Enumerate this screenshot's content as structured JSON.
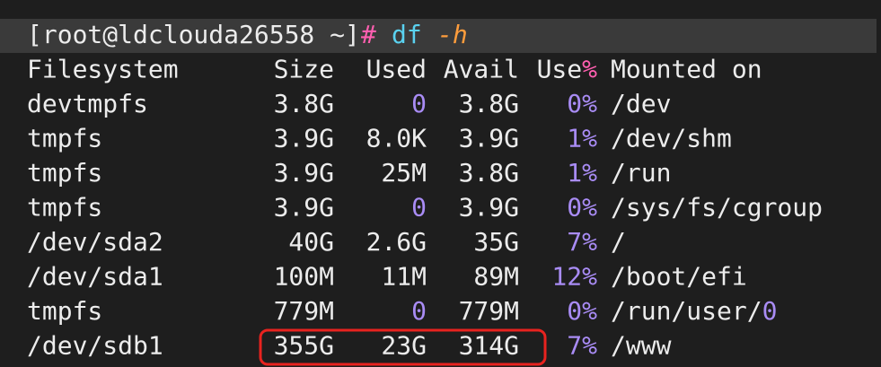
{
  "prompt": {
    "user_host": "[root@ldclouda26558 ~]",
    "symbol": "#",
    "command": "df",
    "flag": "-h"
  },
  "header": [
    "Filesystem",
    "Size",
    "Used",
    "Avail",
    "Use%",
    "Mounted on"
  ],
  "rows": [
    [
      "devtmpfs",
      "3.8G",
      "0",
      "3.8G",
      "0%",
      "/dev"
    ],
    [
      "tmpfs",
      "3.9G",
      "8.0K",
      "3.9G",
      "1%",
      "/dev/shm"
    ],
    [
      "tmpfs",
      "3.9G",
      "25M",
      "3.8G",
      "1%",
      "/run"
    ],
    [
      "tmpfs",
      "3.9G",
      "0",
      "3.9G",
      "0%",
      "/sys/fs/cgroup"
    ],
    [
      "/dev/sda2",
      "40G",
      "2.6G",
      "35G",
      "7%",
      "/"
    ],
    [
      "/dev/sda1",
      "100M",
      "11M",
      "89M",
      "12%",
      "/boot/efi"
    ],
    [
      "tmpfs",
      "779M",
      "0",
      "779M",
      "0%",
      "/run/user/0"
    ],
    [
      "/dev/sdb1",
      "355G",
      "23G",
      "314G",
      "7%",
      "/www"
    ]
  ]
}
